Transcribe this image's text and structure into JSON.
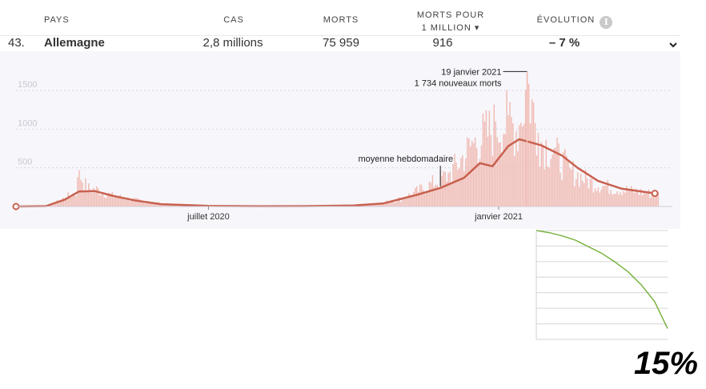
{
  "table": {
    "headers": {
      "pays": "PAYS",
      "cas": "CAS",
      "morts": "MORTS",
      "morts_pour_line1": "MORTS POUR",
      "morts_pour_line2": "1 MILLION ▾",
      "evolution": "ÉVOLUTION",
      "info": "i"
    },
    "row": {
      "rank": "43.",
      "name": "Allemagne",
      "cas": "2,8 millions",
      "morts": "75 959",
      "morts_par_million": "916",
      "evolution": "– 7 %"
    }
  },
  "colors": {
    "bar": "#f0bcb4",
    "avg_line": "#c8614f",
    "grid": "#d8d6e0",
    "inset_line": "#7cb342"
  },
  "chart_data": [
    {
      "type": "bar",
      "title": "",
      "xlabel": "",
      "ylabel": "",
      "yticks": [
        500,
        1000,
        1500
      ],
      "ylim": [
        0,
        1800
      ],
      "xtick_labels": [
        "juillet 2020",
        "janvier 2021"
      ],
      "x_range": [
        "2020-03-01",
        "2021-04-15"
      ],
      "grid": true,
      "annotations": [
        {
          "label_line1": "19 janvier 2021",
          "label_line2": "1 734 nouveaux morts",
          "x": "2021-01-19",
          "y": 1734
        },
        {
          "label": "moyenne hebdomadaire",
          "x": "2020-11-25",
          "y": 240
        }
      ],
      "series": [
        {
          "name": "",
          "kind": "daily",
          "points": [
            [
              "2020-03-01",
              0
            ],
            [
              "2020-03-15",
              5
            ],
            [
              "2020-03-25",
              40
            ],
            [
              "2020-04-01",
              120
            ],
            [
              "2020-04-08",
              200
            ],
            [
              "2020-04-10",
              470
            ],
            [
              "2020-04-15",
              250
            ],
            [
              "2020-04-22",
              230
            ],
            [
              "2020-05-01",
              150
            ],
            [
              "2020-05-15",
              90
            ],
            [
              "2020-06-01",
              40
            ],
            [
              "2020-06-15",
              20
            ],
            [
              "2020-07-01",
              10
            ],
            [
              "2020-08-01",
              5
            ],
            [
              "2020-09-01",
              5
            ],
            [
              "2020-10-01",
              10
            ],
            [
              "2020-10-15",
              30
            ],
            [
              "2020-11-01",
              110
            ],
            [
              "2020-11-15",
              260
            ],
            [
              "2020-12-01",
              450
            ],
            [
              "2020-12-15",
              850
            ],
            [
              "2020-12-30",
              1100
            ],
            [
              "2021-01-07",
              1180
            ],
            [
              "2021-01-14",
              1050
            ],
            [
              "2021-01-19",
              1734
            ],
            [
              "2021-01-26",
              950
            ],
            [
              "2021-02-05",
              750
            ],
            [
              "2021-02-15",
              500
            ],
            [
              "2021-03-01",
              330
            ],
            [
              "2021-03-15",
              250
            ],
            [
              "2021-04-01",
              200
            ],
            [
              "2021-04-10",
              170
            ]
          ]
        },
        {
          "name": "moyenne hebdomadaire",
          "kind": "weekly_average",
          "points": [
            [
              "2020-03-01",
              0
            ],
            [
              "2020-03-20",
              5
            ],
            [
              "2020-04-01",
              90
            ],
            [
              "2020-04-10",
              195
            ],
            [
              "2020-04-20",
              200
            ],
            [
              "2020-05-01",
              140
            ],
            [
              "2020-05-15",
              80
            ],
            [
              "2020-06-01",
              30
            ],
            [
              "2020-07-01",
              8
            ],
            [
              "2020-08-01",
              4
            ],
            [
              "2020-09-01",
              5
            ],
            [
              "2020-10-01",
              12
            ],
            [
              "2020-10-20",
              40
            ],
            [
              "2020-11-10",
              150
            ],
            [
              "2020-11-25",
              240
            ],
            [
              "2020-12-10",
              370
            ],
            [
              "2020-12-20",
              560
            ],
            [
              "2020-12-28",
              520
            ],
            [
              "2021-01-07",
              780
            ],
            [
              "2021-01-14",
              870
            ],
            [
              "2021-01-28",
              790
            ],
            [
              "2021-02-10",
              660
            ],
            [
              "2021-02-20",
              500
            ],
            [
              "2021-03-05",
              330
            ],
            [
              "2021-03-20",
              230
            ],
            [
              "2021-04-10",
              170
            ]
          ]
        }
      ]
    },
    {
      "type": "line",
      "title": "",
      "xlabel": "",
      "ylabel": "",
      "grid": true,
      "series": [
        {
          "name": "",
          "x": [
            0,
            0.1,
            0.2,
            0.3,
            0.4,
            0.5,
            0.6,
            0.7,
            0.8,
            0.9,
            1.0
          ],
          "y": [
            1.0,
            0.98,
            0.95,
            0.91,
            0.85,
            0.79,
            0.71,
            0.62,
            0.5,
            0.35,
            0.1
          ]
        }
      ]
    }
  ],
  "overlay": {
    "percent_label": "15%"
  }
}
